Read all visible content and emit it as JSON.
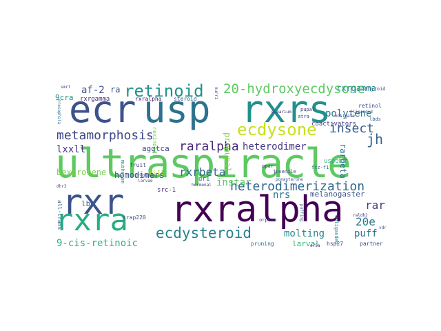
{
  "cloud": {
    "words": [
      {
        "text": "ultraspiracle",
        "color": "#5ec962"
      },
      {
        "text": "ecr",
        "color": "#3b528b"
      },
      {
        "text": "usp",
        "color": "#2c728e"
      },
      {
        "text": "rxrs",
        "color": "#21908d"
      },
      {
        "text": "rxralpha",
        "color": "#440154"
      },
      {
        "text": "rxr",
        "color": "#3b528b"
      },
      {
        "text": "rxra",
        "color": "#27ad81"
      },
      {
        "text": "ecdysone",
        "color": "#c8e020"
      },
      {
        "text": "retinoid",
        "color": "#21918c"
      },
      {
        "text": "20-hydroxyecdysone",
        "color": "#5ec962"
      },
      {
        "text": "metamorphosis",
        "color": "#3e4989"
      },
      {
        "text": "heterodimerization",
        "color": "#31688e"
      },
      {
        "text": "ecdysteroid",
        "color": "#26828e"
      },
      {
        "text": "raralpha",
        "color": "#482878"
      },
      {
        "text": "insect",
        "color": "#355f8d"
      },
      {
        "text": "polytene",
        "color": "#2a788e"
      },
      {
        "text": "rxrgamma",
        "color": "#228d8d"
      },
      {
        "text": "af-2",
        "color": "#3e4a89"
      },
      {
        "text": "ra",
        "color": "#3b528b"
      },
      {
        "text": "rxrbeta",
        "color": "#31688e"
      },
      {
        "text": "heterodimer",
        "color": "#443983"
      },
      {
        "text": "jh",
        "color": "#33638d"
      },
      {
        "text": "lxxll",
        "color": "#46337e"
      },
      {
        "text": "aggtca",
        "color": "#3f4788"
      },
      {
        "text": "bexarotene",
        "color": "#7ad151"
      },
      {
        "text": "homodimers",
        "color": "#3b528b"
      },
      {
        "text": "instar",
        "color": "#5ec962"
      },
      {
        "text": "nrs",
        "color": "#2c728e"
      },
      {
        "text": "melanogaster",
        "color": "#3a548c"
      },
      {
        "text": "rar",
        "color": "#453781"
      },
      {
        "text": "20e",
        "color": "#2a788e"
      },
      {
        "text": "molting",
        "color": "#24868e"
      },
      {
        "text": "puff",
        "color": "#2c728e"
      },
      {
        "text": "9-cis-retinoic",
        "color": "#2db27d"
      },
      {
        "text": "lbd",
        "color": "#355f8d"
      },
      {
        "text": "larval",
        "color": "#35b779"
      },
      {
        "text": "prepupal",
        "color": "#7fd34e"
      },
      {
        "text": "rarbeta",
        "color": "#2c728e"
      },
      {
        "text": "9cra",
        "color": "#21918c"
      },
      {
        "text": "rxrgamma",
        "color": "#482878"
      },
      {
        "text": "rxralpha",
        "color": "#471063"
      },
      {
        "text": "steroid",
        "color": "#3b528b"
      },
      {
        "text": "coactivators",
        "color": "#443983"
      },
      {
        "text": "uspdbd",
        "color": "#2db27d"
      },
      {
        "text": "pruning",
        "color": "#31688e"
      },
      {
        "text": "hsp27",
        "color": "#3e4a89"
      },
      {
        "text": "partner",
        "color": "#3b528b"
      },
      {
        "text": "src-1",
        "color": "#46307e"
      },
      {
        "text": "dr1",
        "color": "#2c728e"
      },
      {
        "text": "tifi",
        "color": "#b5de2b"
      },
      {
        "text": "fruit",
        "color": "#3e4a89"
      },
      {
        "text": "retinol",
        "color": "#3e4989"
      },
      {
        "text": "pupal",
        "color": "#46337e"
      },
      {
        "text": "atra",
        "color": "#3f4788"
      },
      {
        "text": "lbds",
        "color": "#355f8d"
      },
      {
        "text": "ftz-f1",
        "color": "#31688e"
      },
      {
        "text": "ppar",
        "color": "#3e4a89"
      },
      {
        "text": "trap220",
        "color": "#3b528b"
      },
      {
        "text": "orphan",
        "color": "#443983"
      },
      {
        "text": "all-trans",
        "color": "#31688e"
      },
      {
        "text": "mushroom",
        "color": "#26828e"
      },
      {
        "text": "rexinoid",
        "color": "#6ccd5a"
      },
      {
        "text": "juvenile",
        "color": "#3e4989"
      },
      {
        "text": "puparium",
        "color": "#46307e"
      },
      {
        "text": "thyroid",
        "color": "#3e4a89"
      },
      {
        "text": "prepupae",
        "color": "#3b528b"
      },
      {
        "text": "hormonal",
        "color": "#443983"
      },
      {
        "text": "unliganded",
        "color": "#21918c"
      },
      {
        "text": "ponasterone",
        "color": "#3b528b"
      },
      {
        "text": "drosophila",
        "color": "#2c728e"
      },
      {
        "text": "larvae",
        "color": "#3e4989"
      },
      {
        "text": "dhr3",
        "color": "#3f4788"
      },
      {
        "text": "raldh2",
        "color": "#46337e"
      },
      {
        "text": "puffing",
        "color": "#3b528b"
      },
      {
        "text": "smrt",
        "color": "#3e4a89"
      },
      {
        "text": "vdr",
        "color": "#3b528b"
      },
      {
        "text": "obligate",
        "color": "#443983"
      },
      {
        "text": "liganded",
        "color": "#31688e"
      },
      {
        "text": "nurr1",
        "color": "#3e4989"
      },
      {
        "text": "e75a",
        "color": "#46337e"
      }
    ]
  }
}
